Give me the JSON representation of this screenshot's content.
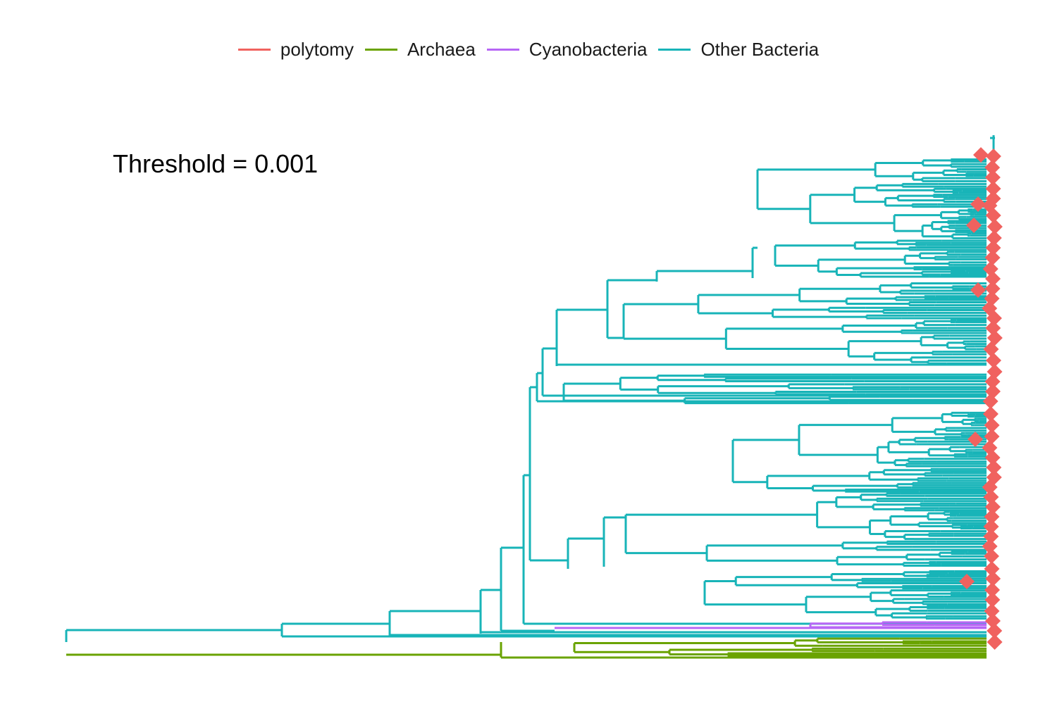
{
  "legend": {
    "items": [
      {
        "label": "polytomy",
        "color": "#F8766D"
      },
      {
        "label": "Archaea",
        "color": "#7CAE00"
      },
      {
        "label": "Cyanobacteria",
        "color": "#C77CFF"
      },
      {
        "label": "Other Bacteria",
        "color": "#00BFC4"
      }
    ]
  },
  "annotation": {
    "text": "Threshold = 0.001"
  },
  "colors": {
    "polytomy": "#F0625F",
    "archaea": "#6AA300",
    "cyanobacteria": "#B766F5",
    "other_bacteria": "#18B4B8"
  }
}
